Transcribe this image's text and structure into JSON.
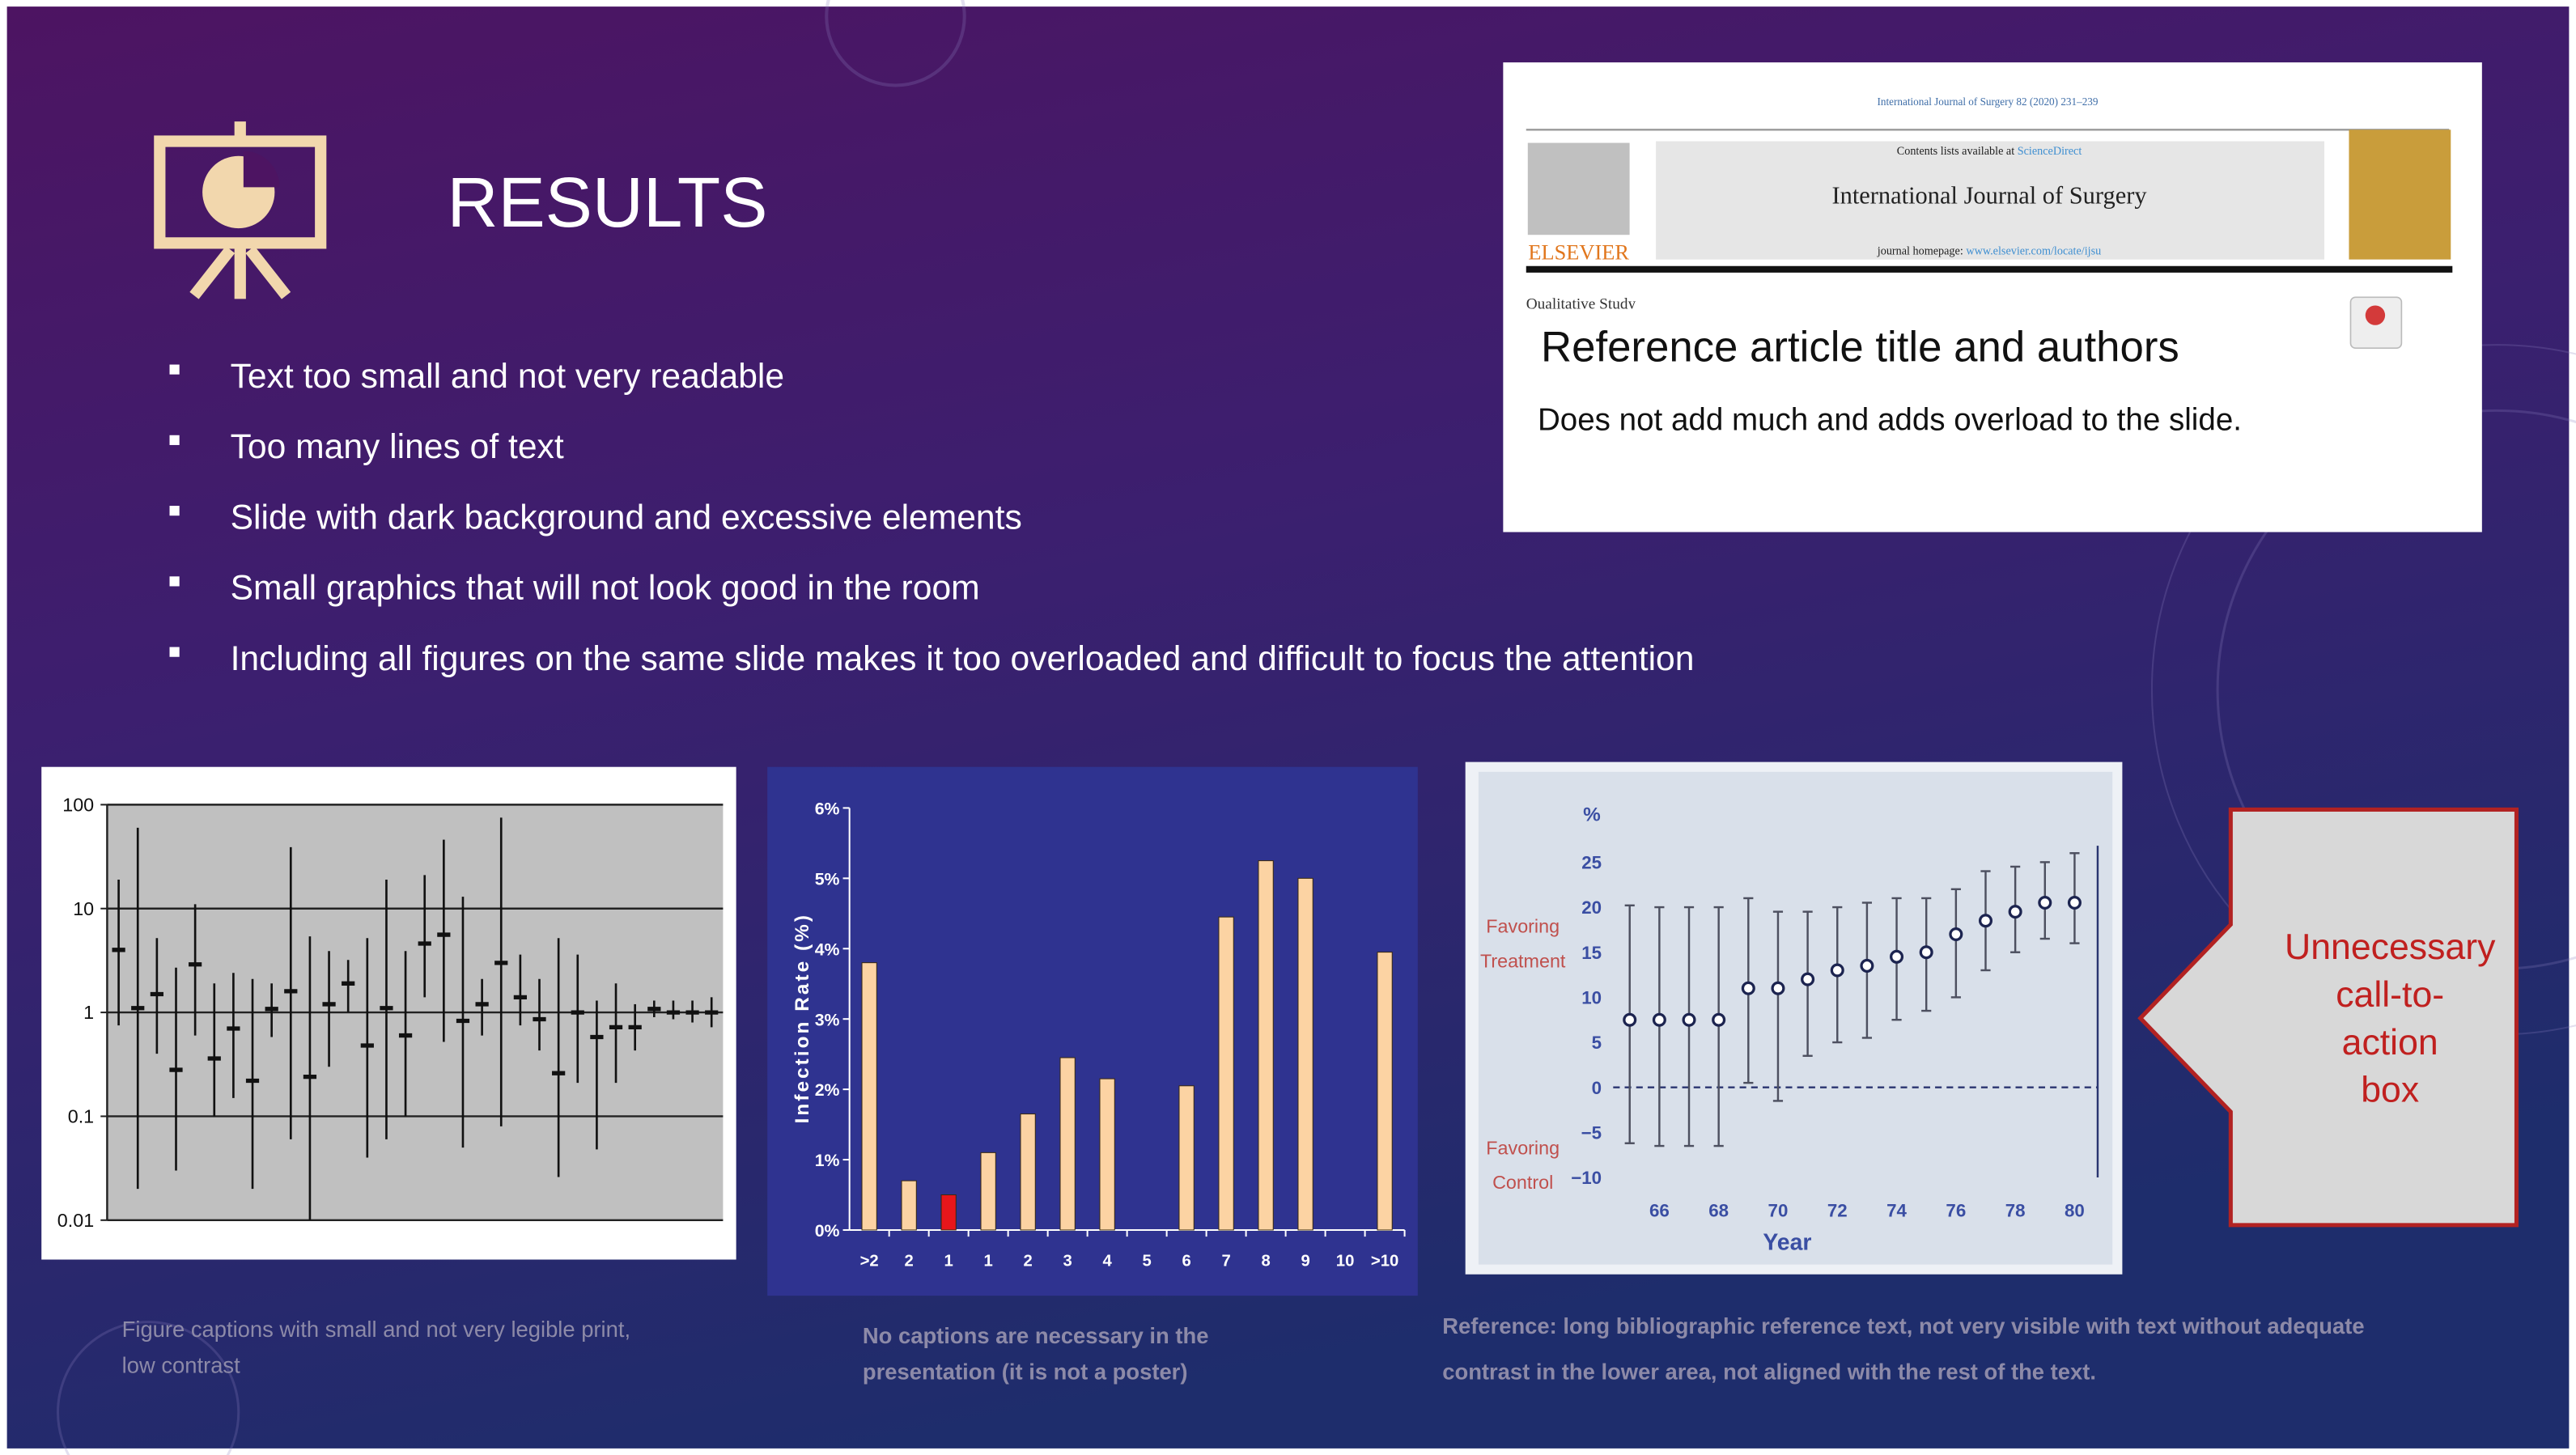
{
  "header": {
    "title": "RESULTS"
  },
  "bullets": [
    "Text too small and not very readable",
    "Too many lines of text",
    "Slide with dark background and excessive elements",
    "Small graphics that will not look good in the room",
    "Including all figures on the same slide makes it too overloaded and difficult to focus the attention"
  ],
  "reference": {
    "journal_line": "International Journal of Surgery 82 (2020) 231–239",
    "contents_prefix": "Contents lists available at",
    "contents_link": "ScienceDirect",
    "journal_name": "International Journal of Surgery",
    "homepage_prefix": "journal homepage:",
    "homepage_link": "www.elsevier.com/locate/ijsu",
    "publisher": "ELSEVIER",
    "article_type": "Qualitative Study",
    "title": "Reference article title and authors",
    "note": "Does not add much and adds overload to the slide."
  },
  "chart_data": [
    {
      "type": "errorbar",
      "log_scale": true,
      "grid": true,
      "ylim": [
        0.01,
        100
      ],
      "yticks": [
        0.01,
        0.1,
        1,
        10,
        100
      ],
      "values": [
        4.0,
        1.1,
        1.5,
        0.28,
        2.9,
        0.36,
        0.7,
        0.22,
        1.08,
        1.6,
        0.24,
        1.2,
        1.9,
        0.48,
        1.1,
        0.6,
        4.6,
        5.6,
        0.83,
        1.2,
        3.0,
        1.4,
        0.86,
        0.26,
        1.0,
        0.58,
        0.72,
        0.72,
        1.08,
        1.0,
        1.0,
        1.0
      ],
      "lower": [
        0.75,
        0.02,
        0.4,
        0.03,
        0.6,
        0.1,
        0.15,
        0.02,
        0.58,
        0.06,
        0.01,
        0.3,
        1.0,
        0.04,
        0.06,
        0.1,
        1.4,
        0.52,
        0.05,
        0.6,
        0.08,
        0.75,
        0.43,
        0.026,
        0.21,
        0.048,
        0.21,
        0.43,
        0.9,
        0.86,
        0.8,
        0.72
      ],
      "upper": [
        19,
        60,
        5.2,
        2.7,
        11,
        1.9,
        2.4,
        2.1,
        1.9,
        39,
        5.4,
        3.9,
        3.2,
        5.2,
        19,
        3.9,
        21,
        46,
        13,
        2.1,
        75,
        3.6,
        2.1,
        5.2,
        3.6,
        1.3,
        1.9,
        1.2,
        1.3,
        1.3,
        1.3,
        1.4
      ]
    },
    {
      "type": "bar",
      "ylabel": "Infection Rate (%)",
      "categories": [
        ">2",
        "2",
        "1",
        "1",
        "2",
        "3",
        "4",
        "5",
        "6",
        "7",
        "8",
        "9",
        "10",
        ">10"
      ],
      "values": [
        3.8,
        0.7,
        0.5,
        1.1,
        1.65,
        2.45,
        2.15,
        null,
        2.05,
        4.45,
        5.25,
        5.0,
        null,
        3.95
      ],
      "colors": [
        "#fcd3a3",
        "#fcd3a3",
        "#e8161b",
        "#fcd3a3",
        "#fcd3a3",
        "#fcd3a3",
        "#fcd3a3",
        null,
        "#fcd3a3",
        "#fcd3a3",
        "#fcd3a3",
        "#fcd3a3",
        null,
        "#fcd3a3"
      ],
      "ylim": [
        0,
        6
      ],
      "yticks": [
        {
          "value": 0,
          "label": "0%"
        },
        {
          "value": 1,
          "label": "1%"
        },
        {
          "value": 2,
          "label": "2%"
        },
        {
          "value": 3,
          "label": "3%"
        },
        {
          "value": 4,
          "label": "4%"
        },
        {
          "value": 5,
          "label": "5%"
        },
        {
          "value": 6,
          "label": "6%"
        }
      ]
    },
    {
      "type": "errorbar",
      "x": [
        65,
        66,
        67,
        68,
        69,
        70,
        71,
        72,
        73,
        74,
        75,
        76,
        77,
        78,
        79,
        80
      ],
      "values": [
        7.5,
        7.5,
        7.5,
        7.5,
        11,
        11,
        12,
        13,
        13.5,
        14.5,
        15,
        17,
        18.5,
        19.5,
        20.5,
        20.5
      ],
      "lower": [
        -6.2,
        -6.5,
        -6.5,
        -6.5,
        0.5,
        -1.5,
        3.5,
        5,
        5.5,
        7.5,
        8.5,
        10,
        13,
        15,
        16.5,
        16
      ],
      "upper": [
        20.2,
        20,
        20,
        20,
        21,
        19.5,
        19.5,
        20,
        20.5,
        21,
        21,
        22,
        24,
        24.5,
        25,
        26
      ],
      "xlim": [
        64,
        81
      ],
      "ylim": [
        -10,
        25
      ],
      "xticks": [
        66,
        68,
        70,
        72,
        74,
        76,
        78,
        80
      ],
      "yticks": [
        25,
        20,
        15,
        10,
        5,
        0,
        {
          "value": -5,
          "label": "−5"
        },
        {
          "value": -10,
          "label": "−10"
        }
      ],
      "reference_line": 0,
      "xlabel": "Year",
      "ylabel": "%",
      "annotations": [
        {
          "lines": [
            "Favoring",
            "Treatment"
          ]
        },
        {
          "lines": [
            "Favoring",
            "Control"
          ]
        }
      ]
    }
  ],
  "callout": {
    "lines": [
      "Unnecessary",
      "call-to-",
      "action",
      "box"
    ]
  },
  "captions": [
    {
      "lines": [
        "Figure captions with small and not very legible print,",
        "low contrast"
      ]
    },
    {
      "lines": [
        "No captions are necessary in the",
        "presentation (it is not a poster)"
      ]
    },
    {
      "lines": [
        "Reference: long bibliographic reference text, not very visible with text without adequate",
        "contrast in the lower area, not aligned with the rest of the text."
      ]
    }
  ]
}
